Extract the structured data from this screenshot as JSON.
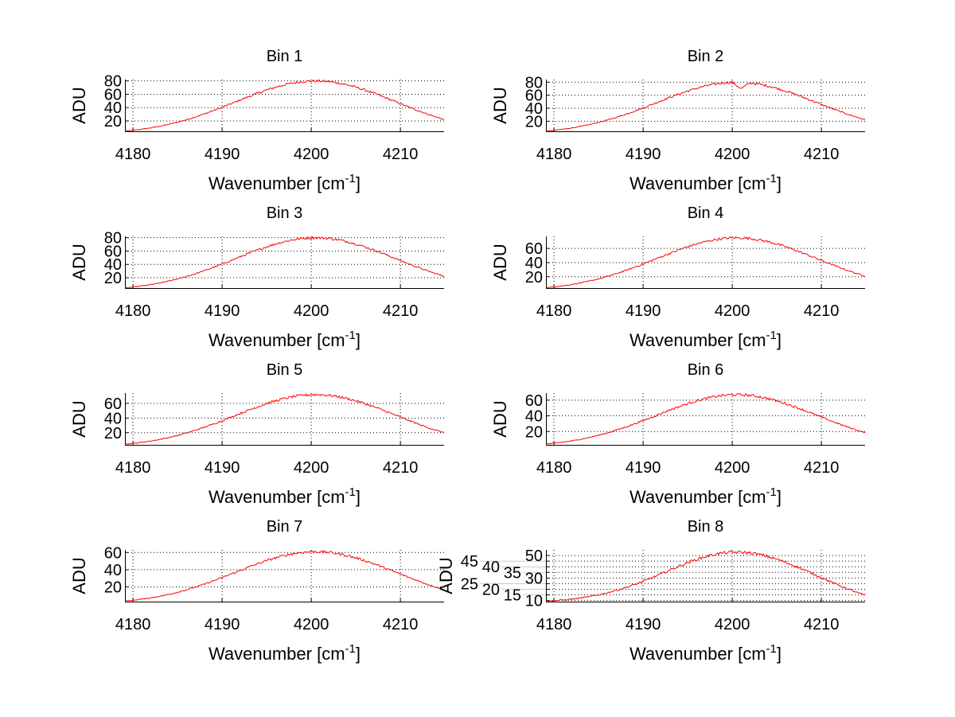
{
  "chart_data": [
    {
      "type": "line",
      "title": "Bin 1",
      "xlabel": "Wavenumber [cm",
      "xlabel_sup": "-1",
      "xlabel_end": "]",
      "ylabel": "ADU",
      "xlim": [
        4179.1,
        4214.9
      ],
      "ylim": [
        4.5,
        82
      ],
      "xticks": [
        4180,
        4190,
        4200,
        4210
      ],
      "yticks": [
        20,
        40,
        60,
        80
      ],
      "grid": true,
      "color": "#ff0000",
      "x_start": 4179,
      "x_step": 1,
      "values": [
        4.6,
        6.0,
        7.7,
        9.7,
        12.1,
        14.9,
        18.2,
        21.8,
        26.0,
        30.5,
        35.4,
        40.5,
        45.8,
        51.2,
        56.6,
        61.6,
        66.4,
        70.6,
        74.2,
        77.0,
        78.9,
        79.8,
        79.8,
        78.9,
        77.0,
        74.2,
        70.6,
        66.4,
        61.6,
        56.6,
        51.2,
        45.8,
        40.5,
        35.4,
        30.5,
        26.0,
        21.8
      ]
    },
    {
      "type": "line",
      "title": "Bin 2",
      "xlabel": "Wavenumber [cm",
      "xlabel_sup": "-1",
      "xlabel_end": "]",
      "ylabel": "ADU",
      "xlim": [
        4179.1,
        4214.9
      ],
      "ylim": [
        4.5,
        84
      ],
      "xticks": [
        4180,
        4190,
        4200,
        4210
      ],
      "yticks": [
        20,
        40,
        60,
        80
      ],
      "grid": true,
      "color": "#ff0000",
      "x_start": 4179,
      "x_step": 1,
      "values": [
        4.6,
        6.0,
        7.7,
        9.7,
        12.1,
        14.9,
        18.2,
        21.8,
        26.0,
        30.5,
        35.4,
        40.5,
        45.8,
        51.2,
        56.6,
        61.6,
        66.4,
        70.6,
        74.2,
        77.0,
        78.9,
        79.8,
        70.0,
        78.9,
        77.0,
        74.2,
        70.6,
        66.4,
        61.6,
        56.6,
        51.2,
        45.8,
        40.5,
        35.4,
        30.5,
        26.0,
        21.8
      ]
    },
    {
      "type": "line",
      "title": "Bin 3",
      "xlabel": "Wavenumber [cm",
      "xlabel_sup": "-1",
      "xlabel_end": "]",
      "ylabel": "ADU",
      "xlim": [
        4179.1,
        4214.9
      ],
      "ylim": [
        4.5,
        82
      ],
      "xticks": [
        4180,
        4190,
        4200,
        4210
      ],
      "yticks": [
        20,
        40,
        60,
        80
      ],
      "grid": true,
      "color": "#ff0000",
      "x_start": 4179,
      "x_step": 1,
      "values": [
        4.6,
        6.0,
        7.7,
        9.7,
        12.1,
        14.9,
        18.2,
        21.8,
        26.0,
        30.5,
        35.4,
        40.5,
        45.8,
        51.2,
        56.6,
        61.6,
        66.4,
        70.6,
        74.2,
        77.0,
        78.9,
        79.8,
        79.8,
        78.9,
        77.0,
        74.2,
        70.6,
        66.4,
        61.6,
        56.6,
        51.2,
        45.8,
        40.5,
        35.4,
        30.5,
        26.0,
        21.8
      ]
    },
    {
      "type": "line",
      "title": "Bin 4",
      "xlabel": "Wavenumber [cm",
      "xlabel_sup": "-1",
      "xlabel_end": "]",
      "ylabel": "ADU",
      "xlim": [
        4179.1,
        4214.9
      ],
      "ylim": [
        4,
        77
      ],
      "xticks": [
        4180,
        4190,
        4200,
        4210
      ],
      "yticks": [
        20,
        40,
        60
      ],
      "grid": true,
      "color": "#ff0000",
      "x_start": 4179,
      "x_step": 1,
      "values": [
        4.4,
        5.6,
        7.2,
        9.1,
        11.3,
        14.0,
        17.0,
        20.5,
        24.4,
        28.6,
        33.2,
        38.0,
        43.0,
        48.0,
        53.0,
        57.8,
        62.3,
        66.2,
        69.5,
        72.2,
        74.0,
        74.9,
        74.9,
        74.0,
        72.2,
        69.5,
        66.2,
        62.3,
        57.8,
        53.0,
        48.0,
        43.0,
        38.0,
        33.2,
        28.6,
        24.4,
        20.5
      ]
    },
    {
      "type": "line",
      "title": "Bin 5",
      "xlabel": "Wavenumber [cm",
      "xlabel_sup": "-1",
      "xlabel_end": "]",
      "ylabel": "ADU",
      "xlim": [
        4179.1,
        4214.9
      ],
      "ylim": [
        3.5,
        74
      ],
      "xticks": [
        4180,
        4190,
        4200,
        4210
      ],
      "yticks": [
        20,
        40,
        60
      ],
      "grid": true,
      "color": "#ff0000",
      "x_start": 4179,
      "x_step": 1,
      "values": [
        4.2,
        5.4,
        6.9,
        8.7,
        10.9,
        13.4,
        16.3,
        19.7,
        23.4,
        27.4,
        31.8,
        36.4,
        41.3,
        46.1,
        50.9,
        55.4,
        59.8,
        63.5,
        66.7,
        69.3,
        71.0,
        71.9,
        71.9,
        71.0,
        69.3,
        66.7,
        63.5,
        59.8,
        55.4,
        50.9,
        46.1,
        41.3,
        36.4,
        31.8,
        27.4,
        23.4,
        19.7
      ]
    },
    {
      "type": "line",
      "title": "Bin 6",
      "xlabel": "Wavenumber [cm",
      "xlabel_sup": "-1",
      "xlabel_end": "]",
      "ylabel": "ADU",
      "xlim": [
        4179.1,
        4214.9
      ],
      "ylim": [
        3,
        69
      ],
      "xticks": [
        4180,
        4190,
        4200,
        4210
      ],
      "yticks": [
        20,
        40,
        60
      ],
      "grid": true,
      "color": "#ff0000",
      "x_start": 4179,
      "x_step": 1,
      "values": [
        3.9,
        5.0,
        6.4,
        8.1,
        10.1,
        12.5,
        15.2,
        18.3,
        21.8,
        25.5,
        29.6,
        33.9,
        38.4,
        42.9,
        47.4,
        51.6,
        55.6,
        59.1,
        62.1,
        64.5,
        66.1,
        66.9,
        66.9,
        66.1,
        64.5,
        62.1,
        59.1,
        55.6,
        51.6,
        47.4,
        42.9,
        38.4,
        33.9,
        29.6,
        25.5,
        21.8,
        18.3
      ]
    },
    {
      "type": "line",
      "title": "Bin 7",
      "xlabel": "Wavenumber [cm",
      "xlabel_sup": "-1",
      "xlabel_end": "]",
      "ylabel": "ADU",
      "xlim": [
        4179.1,
        4214.9
      ],
      "ylim": [
        3,
        63
      ],
      "xticks": [
        4180,
        4190,
        4200,
        4210
      ],
      "yticks": [
        20,
        40,
        60
      ],
      "grid": true,
      "color": "#ff0000",
      "x_start": 4179,
      "x_step": 1,
      "values": [
        3.5,
        4.6,
        5.9,
        7.4,
        9.2,
        11.3,
        13.8,
        16.7,
        19.8,
        23.2,
        27.0,
        30.9,
        35.0,
        39.0,
        43.1,
        47.0,
        50.6,
        53.8,
        56.5,
        58.7,
        60.1,
        60.9,
        60.9,
        60.1,
        58.7,
        56.5,
        53.8,
        50.6,
        47.0,
        43.1,
        39.0,
        35.0,
        30.9,
        27.0,
        23.2,
        19.8,
        16.7
      ]
    },
    {
      "type": "line",
      "title": "Bin 8",
      "xlabel": "Wavenumber [cm",
      "xlabel_sup": "-1",
      "xlabel_end": "]",
      "ylabel": "ADU",
      "xlim": [
        4179.1,
        4214.9
      ],
      "ylim": [
        9,
        55
      ],
      "xticks": [
        4180,
        4190,
        4200,
        4210
      ],
      "yticks": [
        10,
        15,
        20,
        25,
        30,
        35,
        40,
        45,
        50
      ],
      "grid": true,
      "color": "#ff0000",
      "x_start": 4179,
      "x_step": 1,
      "values": [
        9.3,
        9.8,
        10.4,
        11.2,
        12.2,
        13.5,
        15.0,
        16.9,
        19.0,
        21.4,
        24.0,
        27.0,
        30.2,
        33.6,
        37.0,
        40.4,
        43.6,
        46.5,
        49.0,
        51.0,
        52.3,
        52.9,
        52.9,
        52.3,
        51.0,
        49.1,
        46.7,
        44.0,
        40.8,
        37.5,
        33.9,
        30.4,
        26.8,
        23.4,
        20.2,
        17.2,
        14.5
      ]
    }
  ]
}
